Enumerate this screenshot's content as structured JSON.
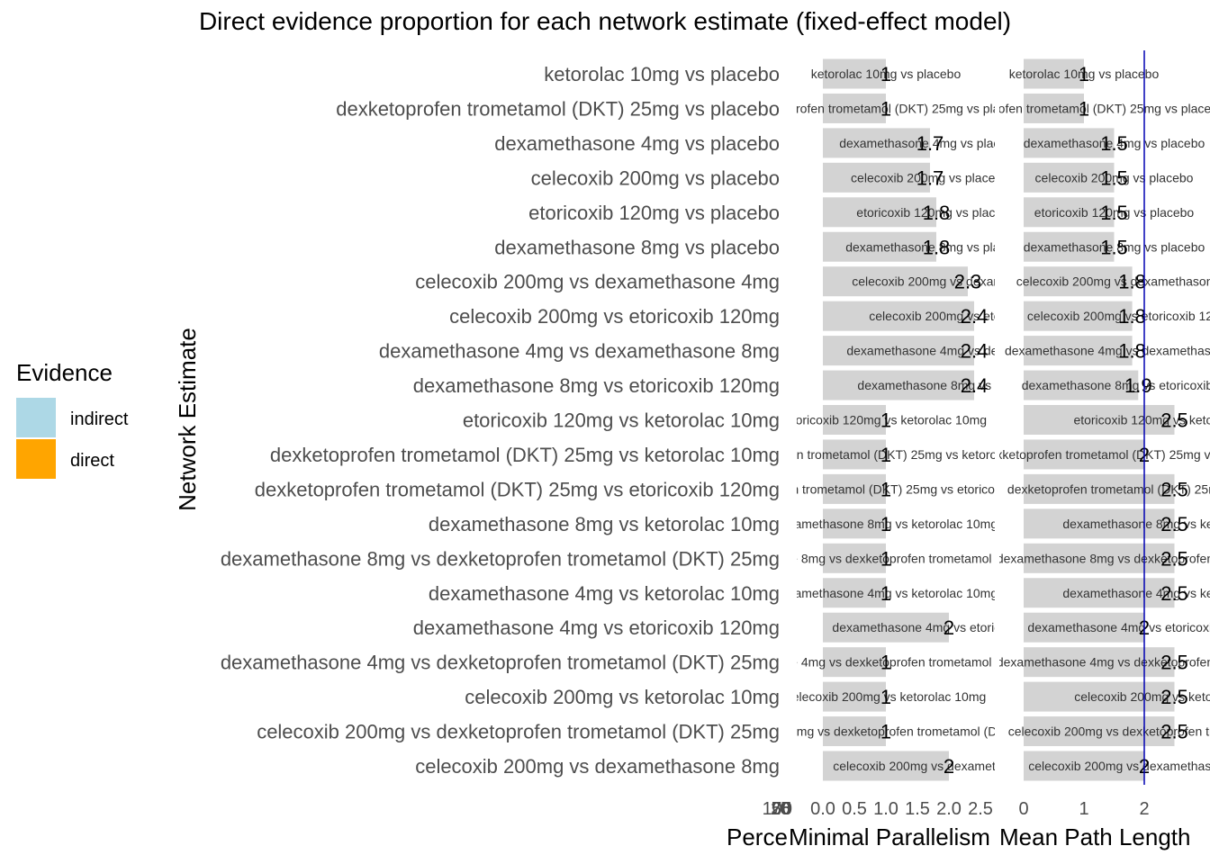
{
  "chart_data": {
    "type": "bar",
    "title": "Direct evidence proportion for each network estimate (fixed-effect model)",
    "ylabel": "Network Estimate",
    "categories": [
      "ketorolac 10mg vs placebo",
      "dexketoprofen trometamol (DKT) 25mg vs placebo",
      "dexamethasone 4mg vs placebo",
      "celecoxib 200mg vs placebo",
      "etoricoxib 120mg vs placebo",
      "dexamethasone 8mg vs placebo",
      "celecoxib 200mg vs dexamethasone 4mg",
      "celecoxib 200mg vs etoricoxib 120mg",
      "dexamethasone 4mg vs dexamethasone 8mg",
      "dexamethasone 8mg vs etoricoxib 120mg",
      "etoricoxib 120mg vs ketorolac 10mg",
      "dexketoprofen trometamol (DKT) 25mg vs ketorolac 10mg",
      "dexketoprofen trometamol (DKT) 25mg vs etoricoxib 120mg",
      "dexamethasone 8mg vs ketorolac 10mg",
      "dexamethasone 8mg vs dexketoprofen trometamol (DKT) 25mg",
      "dexamethasone 4mg vs ketorolac 10mg",
      "dexamethasone 4mg vs etoricoxib 120mg",
      "dexamethasone 4mg vs dexketoprofen trometamol (DKT) 25mg",
      "celecoxib 200mg vs ketorolac 10mg",
      "celecoxib 200mg vs dexketoprofen trometamol (DKT) 25mg",
      "celecoxib 200mg vs dexamethasone 8mg"
    ],
    "legend": {
      "title": "Evidence",
      "position": "left",
      "entries": [
        {
          "label": "indirect",
          "color": "#add8e6"
        },
        {
          "label": "direct",
          "color": "#ffa500"
        }
      ]
    },
    "panels": [
      {
        "xlabel": "Perce",
        "ticks": [
          "100",
          "75",
          "50",
          "25",
          "0"
        ],
        "series": []
      },
      {
        "xlabel": "Minimal Parallelism",
        "xlim": [
          0,
          2.5
        ],
        "ticks": [
          "0.0",
          "0.5",
          "1.0",
          "1.5",
          "2.0",
          "2.5"
        ],
        "values": [
          1,
          1,
          1.7,
          1.7,
          1.8,
          1.8,
          2.3,
          2.4,
          2.4,
          2.4,
          1,
          1,
          1,
          1,
          1,
          1,
          2,
          1,
          1,
          1,
          2
        ],
        "value_labels": [
          "1",
          "1",
          "1.7",
          "1.7",
          "1.8",
          "1.8",
          "2.3",
          "2.4",
          "2.4",
          "2.4",
          "1",
          "1",
          "1",
          "1",
          "1",
          "1",
          "2",
          "1",
          "1",
          "1",
          "2"
        ],
        "bar_color": "#d3d3d3"
      },
      {
        "xlabel": "Mean Path Length",
        "xlim": [
          0,
          2.5
        ],
        "ticks": [
          "0",
          "1",
          "2"
        ],
        "reference_line": 2,
        "reference_color": "#0000b3",
        "values": [
          1,
          1,
          1.5,
          1.5,
          1.5,
          1.5,
          1.8,
          1.8,
          1.8,
          1.9,
          2.5,
          2,
          2.5,
          2.5,
          2.5,
          2.5,
          2,
          2.5,
          2.5,
          2.5,
          2
        ],
        "value_labels": [
          "1",
          "1",
          "1.5",
          "1.5",
          "1.5",
          "1.5",
          "1.8",
          "1.8",
          "1.8",
          "1.9",
          "2.5",
          "2",
          "2.5",
          "2.5",
          "2.5",
          "2.5",
          "2",
          "2.5",
          "2.5",
          "2.5",
          "2"
        ],
        "bar_color": "#d3d3d3"
      }
    ]
  }
}
